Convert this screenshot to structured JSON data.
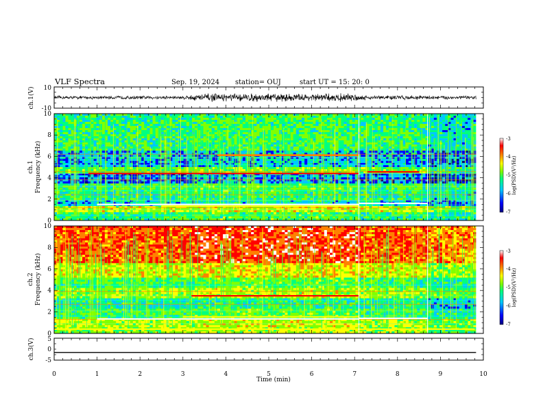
{
  "header": {
    "title": "VLF Spectra",
    "date": "Sep. 19, 2024",
    "station": "station= OUJ",
    "start_ut": "start UT =  15: 20: 0"
  },
  "colormap": {
    "stops": [
      "#000080",
      "#0000ff",
      "#00c8ff",
      "#00ff80",
      "#80ff00",
      "#ffff00",
      "#ff8000",
      "#ff0000",
      "#ffffff"
    ]
  },
  "chart_data": [
    {
      "type": "line",
      "ylabel": "ch.1(V)",
      "ylim": [
        -10,
        10
      ],
      "y_ticks": [
        "10",
        "-10"
      ],
      "x": [
        0,
        1,
        2,
        3,
        3.5,
        4,
        5,
        6,
        7,
        7.2,
        8,
        8.7,
        9,
        9.83
      ],
      "amplitude": [
        1.8,
        1.8,
        1.9,
        2.0,
        4.5,
        4.0,
        4.5,
        4.0,
        4.5,
        2.5,
        2.5,
        2.2,
        2.0,
        2.0
      ],
      "offset": 0
    },
    {
      "type": "heatmap",
      "ylabel": "ch.1",
      "ylabel2": "Frequency (kHz)",
      "ylim": [
        0,
        10
      ],
      "y_ticks": [
        "0",
        "2",
        "4",
        "6",
        "8",
        "10"
      ],
      "colorbar": {
        "label": "log(PSD)(V²/Hz)",
        "range": [
          -7,
          -3
        ],
        "ticks": [
          "-3",
          "-4",
          "-5",
          "-6",
          "-7"
        ]
      },
      "bands_khz": [
        {
          "from": 0,
          "to": 0.7,
          "level": 3.2
        },
        {
          "from": 0.7,
          "to": 1.3,
          "level": 4.5
        },
        {
          "from": 1.3,
          "to": 2.0,
          "level": 2.2
        },
        {
          "from": 2.0,
          "to": 2.6,
          "level": 2.9
        },
        {
          "from": 2.6,
          "to": 3.4,
          "level": 3.3
        },
        {
          "from": 3.4,
          "to": 4.5,
          "level": 1.4
        },
        {
          "from": 4.5,
          "to": 5.0,
          "level": 3.6
        },
        {
          "from": 5.0,
          "to": 6.5,
          "level": 1.8
        },
        {
          "from": 6.5,
          "to": 10.0,
          "level": 3.1
        }
      ],
      "lines_khz": [
        0.5,
        1.0,
        1.2,
        1.45,
        1.9,
        2.4,
        2.8,
        3.2,
        3.8,
        4.1,
        4.4,
        4.6,
        5.2,
        5.9,
        6.2
      ],
      "bright_segments": [
        {
          "from_min": 1.0,
          "to_min": 7.1,
          "khz": 1.5,
          "color": "#ffffff"
        },
        {
          "from_min": 2.5,
          "to_min": 7.1,
          "khz": 1.35,
          "color": "#ffff00"
        },
        {
          "from_min": 7.1,
          "to_min": 8.7,
          "khz": 1.6,
          "color": "#ffffff"
        },
        {
          "from_min": 0.8,
          "to_min": 7.1,
          "khz": 4.4,
          "color": "#ff0000"
        },
        {
          "from_min": 7.3,
          "to_min": 8.5,
          "khz": 4.55,
          "color": "#ff0000"
        },
        {
          "from_min": 3.8,
          "to_min": 7.1,
          "khz": 6.1,
          "color": "#ff8000"
        }
      ],
      "dividers_min": [
        7.1,
        8.7
      ],
      "spikes_per_min": 22
    },
    {
      "type": "heatmap",
      "ylabel": "ch.2",
      "ylabel2": "Frequency (kHz)",
      "ylim": [
        0,
        10
      ],
      "y_ticks": [
        "0",
        "2",
        "4",
        "6",
        "8",
        "10"
      ],
      "colorbar": {
        "label": "log(PSD)(V²/Hz)",
        "range": [
          -7,
          -3
        ],
        "ticks": [
          "-3",
          "-4",
          "-5",
          "-6",
          "-7"
        ]
      },
      "bands_khz": [
        {
          "from": 0,
          "to": 0.6,
          "level": 4.0
        },
        {
          "from": 0.6,
          "to": 1.4,
          "level": 4.4
        },
        {
          "from": 1.4,
          "to": 2.4,
          "level": 3.3
        },
        {
          "from": 2.4,
          "to": 3.3,
          "level": 2.7
        },
        {
          "from": 3.3,
          "to": 4.2,
          "level": 4.2
        },
        {
          "from": 4.2,
          "to": 5.2,
          "level": 3.3
        },
        {
          "from": 5.2,
          "to": 6.5,
          "level": 4.8
        },
        {
          "from": 6.5,
          "to": 10.0,
          "level": 6.4
        }
      ],
      "lines_khz": [
        0.4,
        0.9,
        1.3,
        1.6,
        2.1,
        2.7,
        3.1,
        3.5,
        3.9,
        4.5
      ],
      "bright_segments": [
        {
          "from_min": 1.0,
          "to_min": 7.1,
          "khz": 1.35,
          "color": "#ffffff"
        },
        {
          "from_min": 3.0,
          "to_min": 7.1,
          "khz": 1.55,
          "color": "#ffff00"
        },
        {
          "from_min": 7.1,
          "to_min": 8.7,
          "khz": 1.4,
          "color": "#ffffff"
        },
        {
          "from_min": 0.0,
          "to_min": 9.8,
          "khz": 0.4,
          "color": "#ffff00"
        },
        {
          "from_min": 3.2,
          "to_min": 7.1,
          "khz": 3.5,
          "color": "#ff0000"
        }
      ],
      "dividers_min": [
        7.1,
        8.7
      ],
      "spikes_per_min": 18
    },
    {
      "type": "line",
      "ylabel": "ch.3(V)",
      "ylim": [
        -5,
        5
      ],
      "y_ticks": [
        "5",
        "0",
        "-5"
      ],
      "x": [
        0,
        9.83
      ],
      "amplitude": [
        0,
        0
      ],
      "offset": -1.5
    }
  ],
  "x_axis": {
    "label": "Time (min)",
    "range": [
      0,
      10
    ],
    "ticks": [
      "0",
      "1",
      "2",
      "3",
      "4",
      "5",
      "6",
      "7",
      "8",
      "9",
      "10"
    ],
    "data_end_min": 9.83
  }
}
